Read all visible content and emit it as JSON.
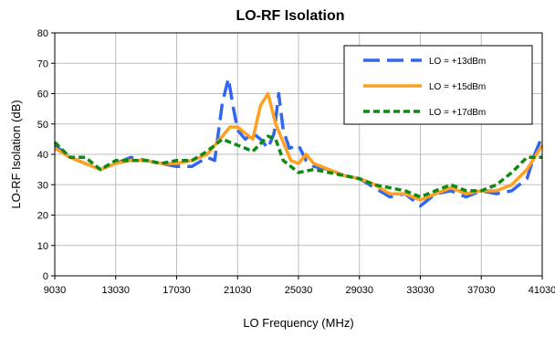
{
  "chart_data": {
    "type": "line",
    "title": "LO-RF Isolation",
    "xlabel": "LO Frequency (MHz)",
    "ylabel": "LO-RF Isolation (dB)",
    "xlim": [
      9030,
      41030
    ],
    "ylim": [
      0,
      80
    ],
    "xticks": [
      9030,
      13030,
      17030,
      21030,
      25030,
      29030,
      33030,
      37030,
      41030
    ],
    "yticks": [
      0,
      10,
      20,
      30,
      40,
      50,
      60,
      70,
      80
    ],
    "grid": true,
    "legend_position": "top-right",
    "series": [
      {
        "name": "LO = +13dBm",
        "color": "#3366ee",
        "dash": "long-dash",
        "points": [
          [
            9030,
            43
          ],
          [
            10030,
            39
          ],
          [
            11030,
            37
          ],
          [
            12030,
            35
          ],
          [
            13030,
            37
          ],
          [
            14030,
            39
          ],
          [
            15030,
            38
          ],
          [
            16030,
            37
          ],
          [
            17030,
            36
          ],
          [
            18030,
            36
          ],
          [
            19030,
            39
          ],
          [
            19530,
            38
          ],
          [
            20030,
            57
          ],
          [
            20430,
            65
          ],
          [
            20730,
            56
          ],
          [
            21030,
            48
          ],
          [
            21530,
            45
          ],
          [
            22030,
            47
          ],
          [
            22530,
            45
          ],
          [
            23030,
            42
          ],
          [
            23430,
            47
          ],
          [
            23730,
            60
          ],
          [
            24030,
            48
          ],
          [
            24430,
            42
          ],
          [
            25030,
            43
          ],
          [
            25530,
            38
          ],
          [
            26030,
            36
          ],
          [
            27030,
            35
          ],
          [
            28030,
            33
          ],
          [
            29030,
            32
          ],
          [
            30030,
            29
          ],
          [
            31030,
            26
          ],
          [
            32030,
            27
          ],
          [
            33030,
            23
          ],
          [
            34030,
            27
          ],
          [
            35030,
            28
          ],
          [
            36030,
            26
          ],
          [
            37030,
            28
          ],
          [
            38030,
            27
          ],
          [
            39030,
            28
          ],
          [
            40030,
            32
          ],
          [
            40530,
            40
          ],
          [
            41030,
            46
          ]
        ]
      },
      {
        "name": "LO = +15dBm",
        "color": "#ffa020",
        "dash": "solid",
        "points": [
          [
            9030,
            42
          ],
          [
            10030,
            39
          ],
          [
            11030,
            37
          ],
          [
            12030,
            35
          ],
          [
            13030,
            37
          ],
          [
            14030,
            38
          ],
          [
            15030,
            38
          ],
          [
            16030,
            37
          ],
          [
            17030,
            37
          ],
          [
            18030,
            38
          ],
          [
            19030,
            40
          ],
          [
            20030,
            46
          ],
          [
            20530,
            49
          ],
          [
            21030,
            49
          ],
          [
            21530,
            47
          ],
          [
            22030,
            45
          ],
          [
            22530,
            56
          ],
          [
            23030,
            60
          ],
          [
            23530,
            50
          ],
          [
            24030,
            44
          ],
          [
            24530,
            38
          ],
          [
            25030,
            37
          ],
          [
            25530,
            40
          ],
          [
            26030,
            37
          ],
          [
            27030,
            35
          ],
          [
            28030,
            33
          ],
          [
            29030,
            32
          ],
          [
            30030,
            30
          ],
          [
            31030,
            27
          ],
          [
            32030,
            27
          ],
          [
            33030,
            25
          ],
          [
            34030,
            27
          ],
          [
            35030,
            29
          ],
          [
            36030,
            27
          ],
          [
            37030,
            28
          ],
          [
            38030,
            28
          ],
          [
            39030,
            30
          ],
          [
            40030,
            35
          ],
          [
            41030,
            43
          ]
        ]
      },
      {
        "name": "LO = +17dBm",
        "color": "#118811",
        "dash": "short-dash",
        "points": [
          [
            9030,
            44
          ],
          [
            10030,
            39
          ],
          [
            11030,
            39
          ],
          [
            12030,
            35
          ],
          [
            13030,
            38
          ],
          [
            14030,
            38
          ],
          [
            15030,
            38
          ],
          [
            16030,
            37
          ],
          [
            17030,
            38
          ],
          [
            18030,
            38
          ],
          [
            19030,
            41
          ],
          [
            20030,
            45
          ],
          [
            20530,
            44
          ],
          [
            21030,
            43
          ],
          [
            22030,
            41
          ],
          [
            23030,
            46
          ],
          [
            23530,
            45
          ],
          [
            24030,
            38
          ],
          [
            25030,
            34
          ],
          [
            26030,
            35
          ],
          [
            27030,
            34
          ],
          [
            28030,
            33
          ],
          [
            29030,
            32
          ],
          [
            30030,
            30
          ],
          [
            31030,
            29
          ],
          [
            32030,
            28
          ],
          [
            33030,
            26
          ],
          [
            34030,
            28
          ],
          [
            35030,
            30
          ],
          [
            36030,
            28
          ],
          [
            37030,
            28
          ],
          [
            38030,
            30
          ],
          [
            39030,
            34
          ],
          [
            40030,
            39
          ],
          [
            41030,
            39
          ]
        ]
      }
    ]
  }
}
